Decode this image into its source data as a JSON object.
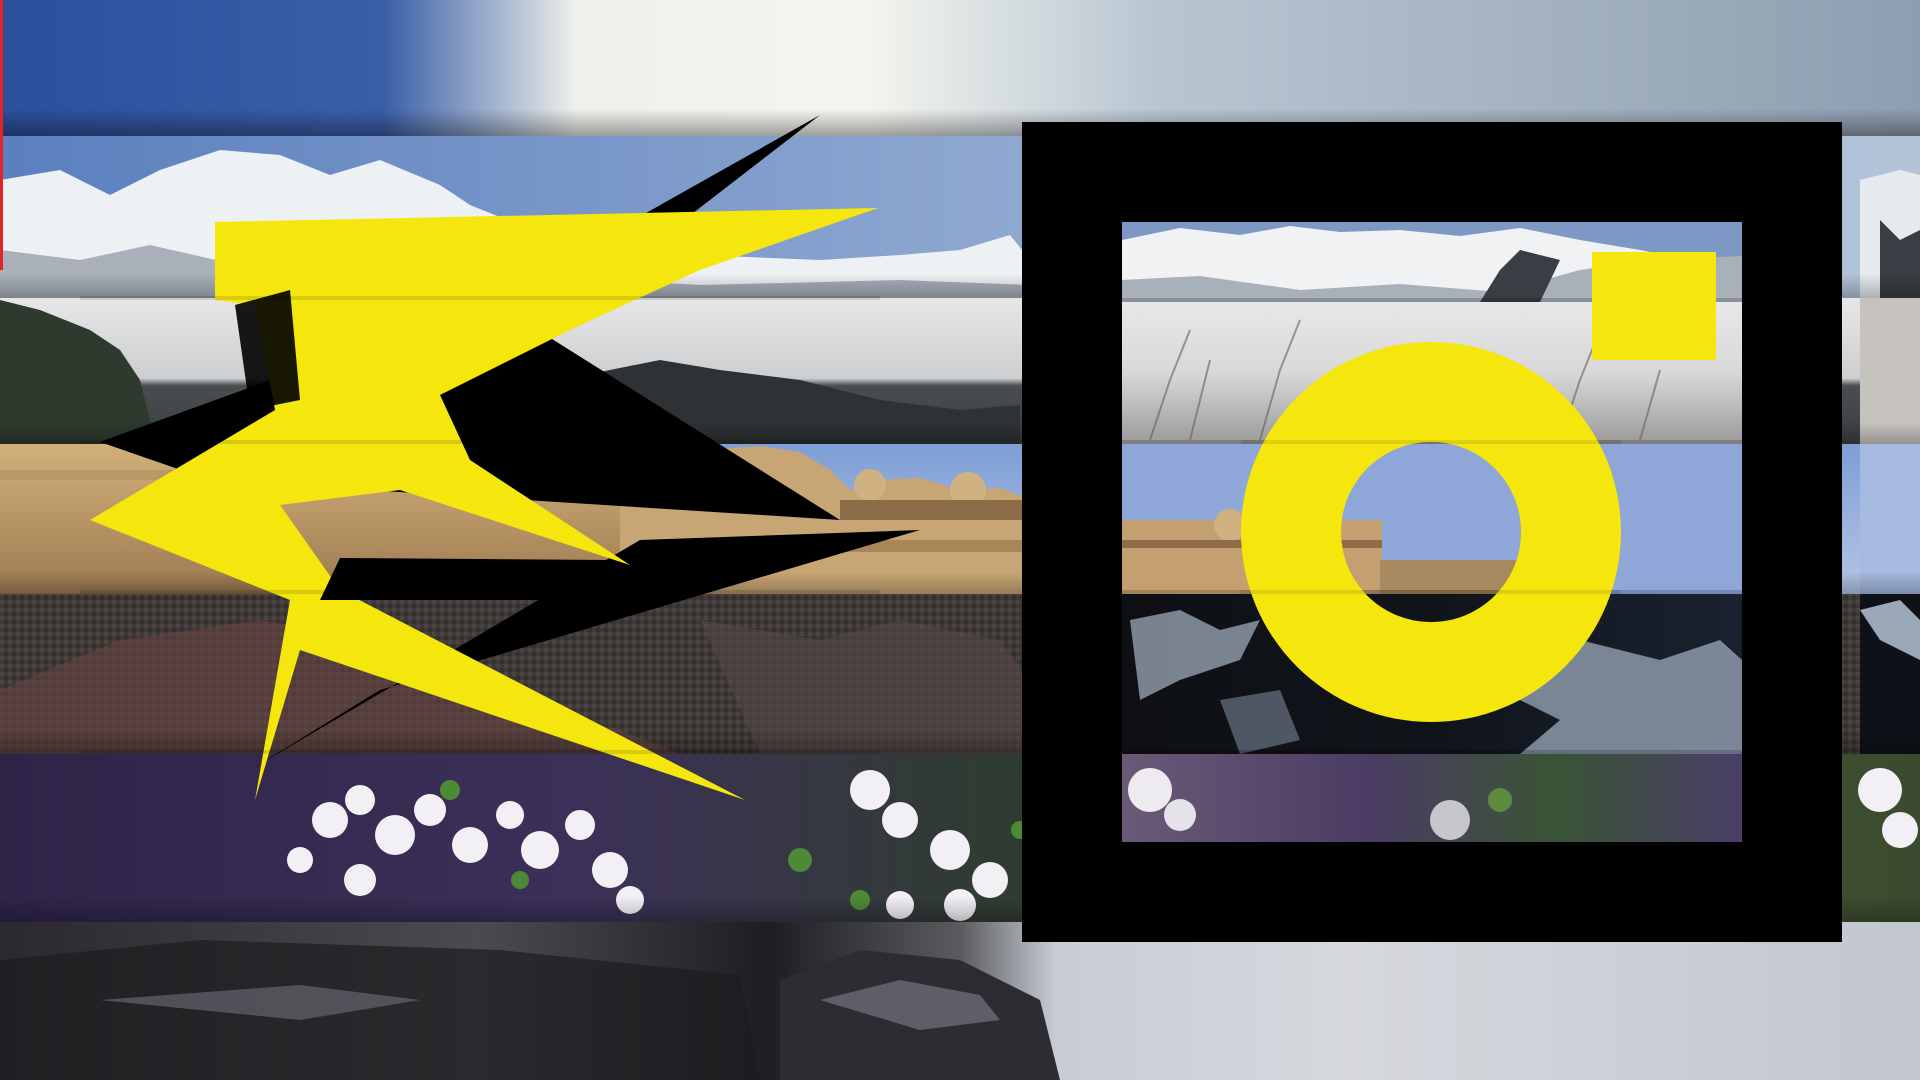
{
  "scene": {
    "description_free": true,
    "palette": {
      "accent_yellow": "#F5E70E",
      "black": "#000000",
      "red_edge": "#E0262B"
    },
    "strips": [
      {
        "name": "sky-strip",
        "top": "#2B4F9E",
        "mid": "#E8ECEC",
        "bottom": "#9AA8B8"
      },
      {
        "name": "mountain-strip",
        "top": "#6C8FC6",
        "mid": "#F2F4F6",
        "bottom": "#7E8896"
      },
      {
        "name": "hills-strip",
        "top": "#E4E6E8",
        "mid": "#C8CACC",
        "bottom": "#3A3E40"
      },
      {
        "name": "fort-strip",
        "top": "#8EA8D8",
        "mid": "#C9A56E",
        "bottom": "#8E6C45"
      },
      {
        "name": "fabric-strip",
        "top": "#3E3A38",
        "mid": "#6A4A46",
        "bottom": "#2E2A28"
      },
      {
        "name": "flowers-strip",
        "top": "#3E2E56",
        "mid": "#E8E6F0",
        "bottom": "#2A3E2A"
      },
      {
        "name": "pot-strip",
        "top": "#2A2A2E",
        "mid": "#55565C",
        "bottom": "#16161A"
      }
    ]
  }
}
